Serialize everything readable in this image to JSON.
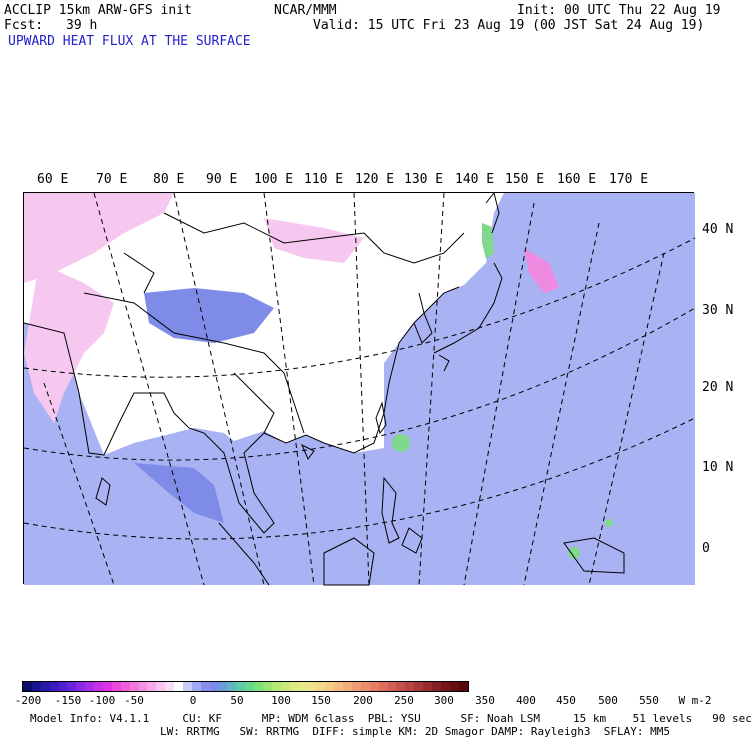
{
  "header": {
    "model_line": "ACCLIP 15km ARW-GFS init",
    "fcst_label": "Fcst:",
    "fcst_value": "39 h",
    "center": "NCAR/MMM",
    "init": "Init: 00 UTC Thu 22 Aug 19",
    "valid": "Valid: 15 UTC Fri 23 Aug 19 (00 JST Sat 24 Aug 19)",
    "field_title": "UPWARD HEAT FLUX AT THE SURFACE"
  },
  "map": {
    "lon_labels": [
      "60 E",
      "70 E",
      "80 E",
      "90 E",
      "100 E",
      "110 E",
      "120 E",
      "130 E",
      "140 E",
      "150 E",
      "160 E",
      "170 E"
    ],
    "lat_labels": [
      "40 N",
      "30 N",
      "20 N",
      "10 N",
      "0"
    ],
    "colors": {
      "land_bg": "#ffffff",
      "ocean_flux": "#a9b2f2",
      "ocean_flux_dark": "#7e8ce8",
      "land_negative": "#f6c8f0",
      "land_negative_strong": "#f08ae0",
      "tropical_cyclone": "#7fd88c",
      "coastline": "#000000",
      "gridline": "#000000"
    }
  },
  "colorbar": {
    "labels": [
      "-200",
      "-150",
      "-100",
      "-50",
      "0",
      "50",
      "100",
      "150",
      "200",
      "250",
      "300",
      "350",
      "400",
      "450",
      "500",
      "550"
    ],
    "units": "W m-2",
    "colors": [
      "#0c0c70",
      "#1a1490",
      "#2a18a8",
      "#3a1cc0",
      "#5020d0",
      "#6a24dc",
      "#8a28e4",
      "#a82ce8",
      "#c830e8",
      "#e034e4",
      "#ec48dc",
      "#f060d8",
      "#f278dc",
      "#f490e2",
      "#f6aaea",
      "#f8c4f0",
      "#fadcf6",
      "#ffffff",
      "#c8ccf8",
      "#a0a8f4",
      "#8690ec",
      "#7a8ae6",
      "#6c9cd8",
      "#62b4c4",
      "#5ecaa8",
      "#64d890",
      "#7ce07c",
      "#98e474",
      "#b4e874",
      "#cce87a",
      "#dcea84",
      "#e6e88a",
      "#eee28c",
      "#f2d88a",
      "#f4cc86",
      "#f4be80",
      "#f2ae7a",
      "#ee9e74",
      "#ea8e6e",
      "#e47e66",
      "#dc6e5e",
      "#d06056",
      "#c4524c",
      "#b64442",
      "#a63838",
      "#962c2e",
      "#862024",
      "#76161a",
      "#660e12",
      "#56080c"
    ]
  },
  "model_info": {
    "line1": "Model Info: V4.1.1     CU: KF      MP: WDM 6class  PBL: YSU      SF: Noah LSM     15 km    51 levels   90 sec",
    "line2": "LW: RRTMG   SW: RRTMG  DIFF: simple KM: 2D Smagor DAMP: Rayleigh3  SFLAY: MM5"
  }
}
